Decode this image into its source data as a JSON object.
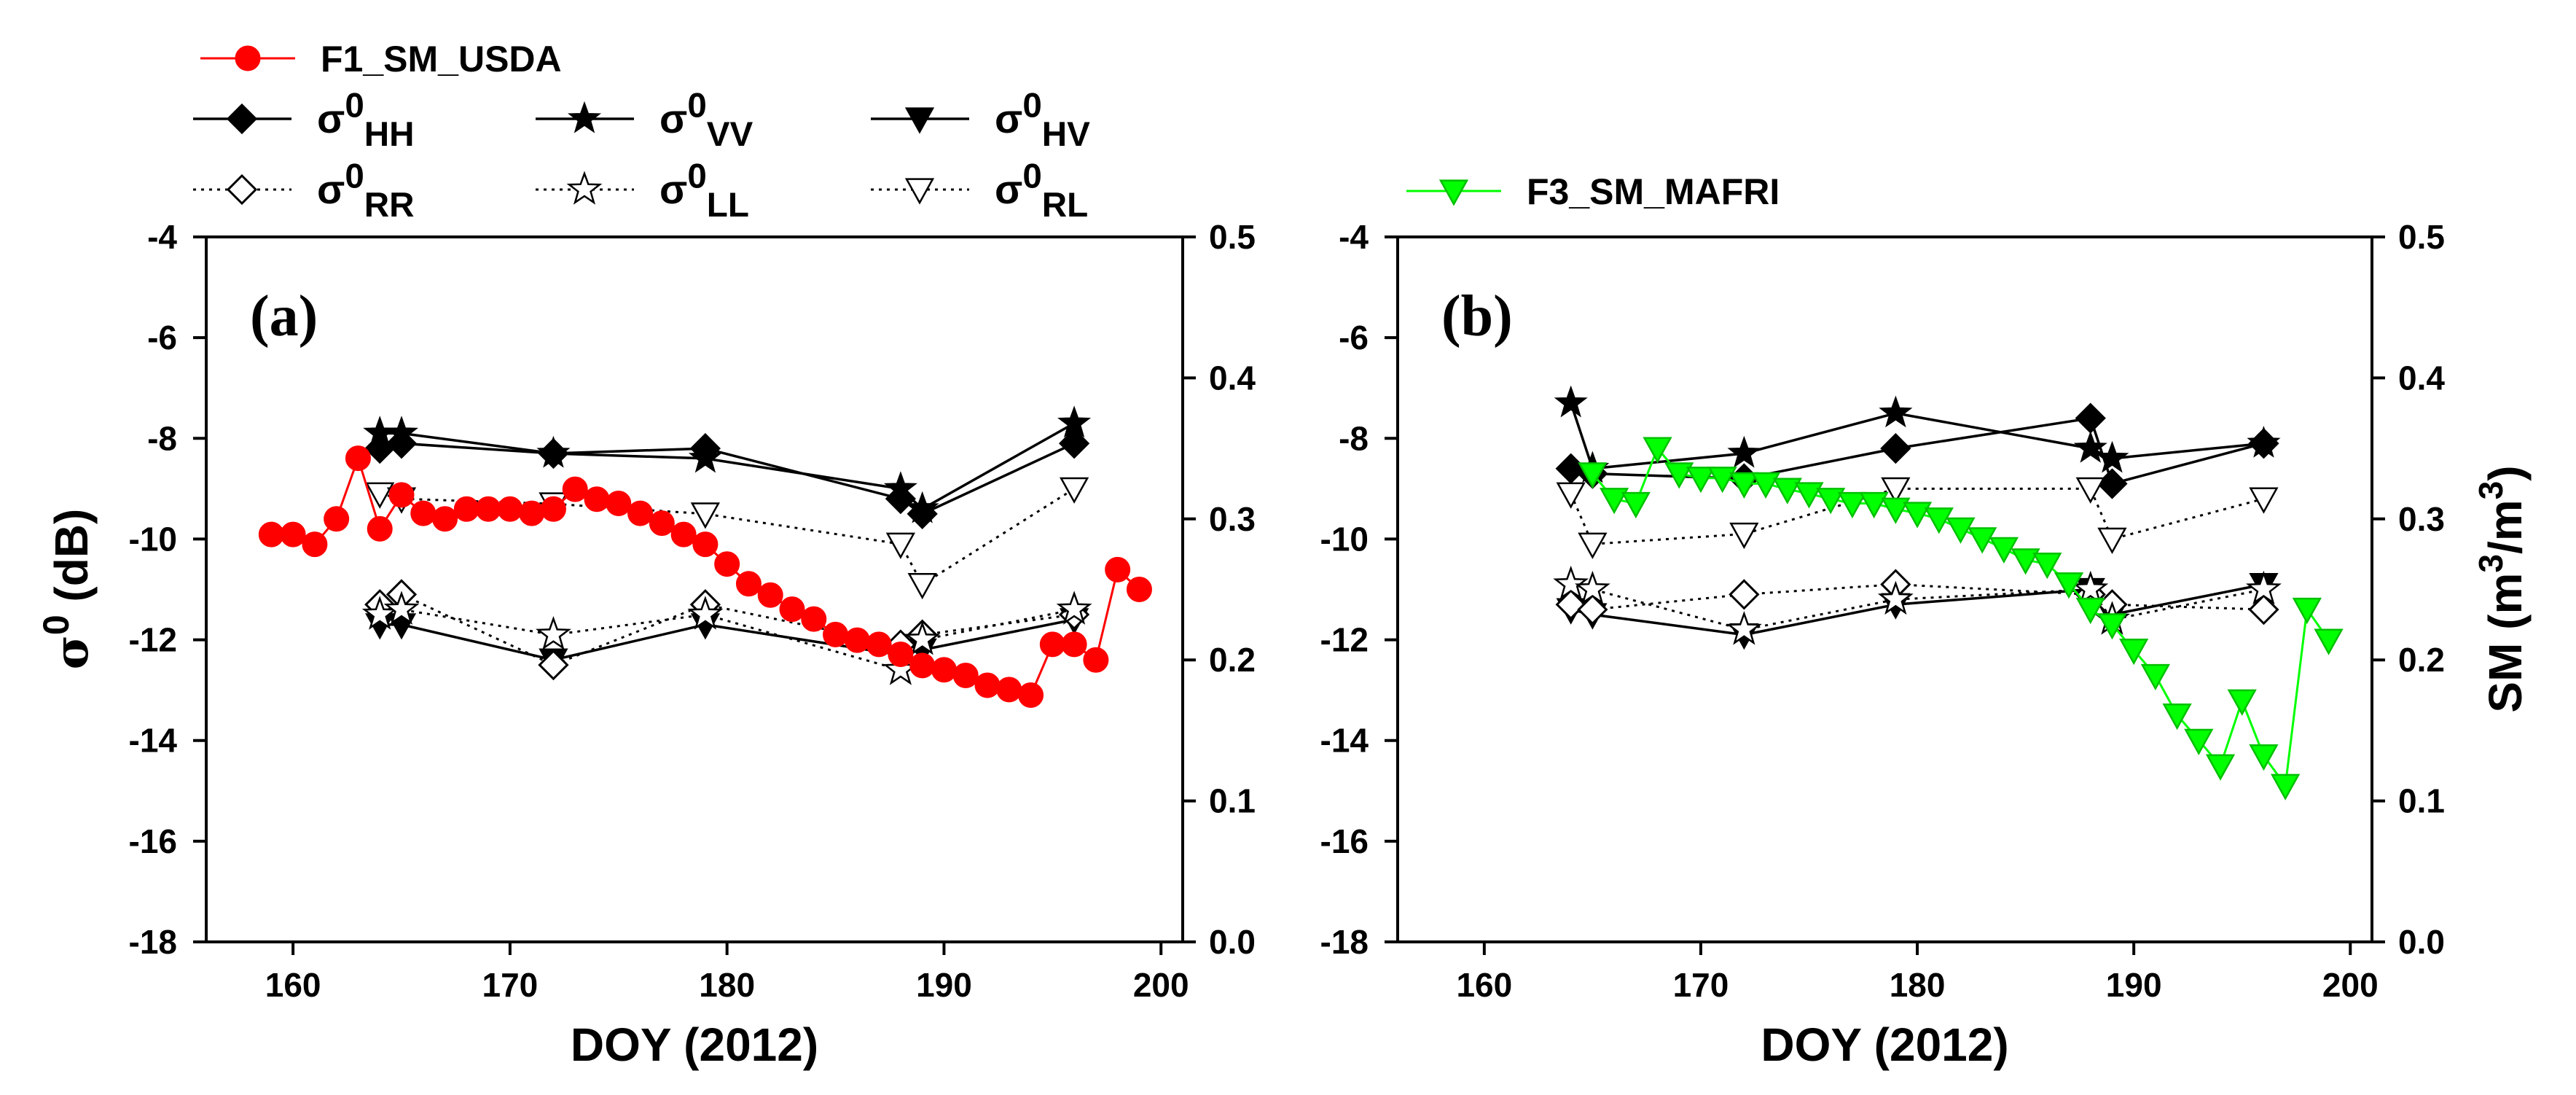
{
  "chart_data": [
    {
      "type": "line",
      "panel_label": "(a)",
      "xlabel": "DOY (2012)",
      "ylabel": "σ",
      "ylabel_sup": "0",
      "ylabel_unit": " (dB)",
      "xlim": [
        156,
        201
      ],
      "ylim": [
        -18,
        -4
      ],
      "y2lim": [
        0.0,
        0.5
      ],
      "xticks": [
        "160",
        "170",
        "180",
        "190",
        "200"
      ],
      "yticks": [
        "-4",
        "-6",
        "-8",
        "-10",
        "-12",
        "-14",
        "-16",
        "-18"
      ],
      "y2ticks": [
        "0.5",
        "0.4",
        "0.3",
        "0.2",
        "0.1",
        "0.0"
      ],
      "series": [
        {
          "name": "σ0HH",
          "axis": "left",
          "line": "solid",
          "marker": "diamond-filled",
          "x": [
            164,
            165,
            172,
            179,
            188,
            189,
            196
          ],
          "y": [
            -8.2,
            -8.1,
            -8.3,
            -8.2,
            -9.2,
            -9.5,
            -8.1
          ]
        },
        {
          "name": "σ0VV",
          "axis": "left",
          "line": "solid",
          "marker": "star-filled",
          "x": [
            164,
            165,
            172,
            179,
            188,
            189,
            196
          ],
          "y": [
            -7.9,
            -7.9,
            -8.3,
            -8.4,
            -9.0,
            -9.4,
            -7.7
          ]
        },
        {
          "name": "σ0HV",
          "axis": "left",
          "line": "solid",
          "marker": "tri-down-filled",
          "x": [
            164,
            165,
            172,
            179,
            188,
            189,
            196
          ],
          "y": [
            -11.7,
            -11.7,
            -12.4,
            -11.7,
            -12.3,
            -12.2,
            -11.6
          ]
        },
        {
          "name": "σ0RR",
          "axis": "left",
          "line": "dotted",
          "marker": "diamond-open",
          "x": [
            164,
            165,
            172,
            179,
            188,
            189,
            196
          ],
          "y": [
            -11.3,
            -11.1,
            -12.5,
            -11.3,
            -12.1,
            -11.9,
            -11.5
          ]
        },
        {
          "name": "σ0LL",
          "axis": "left",
          "line": "dotted",
          "marker": "star-open",
          "x": [
            164,
            165,
            172,
            179,
            188,
            189,
            196
          ],
          "y": [
            -11.5,
            -11.4,
            -11.9,
            -11.5,
            -12.6,
            -12.0,
            -11.4
          ]
        },
        {
          "name": "σ0RL",
          "axis": "left",
          "line": "dotted",
          "marker": "tri-down-open",
          "x": [
            164,
            165,
            172,
            179,
            188,
            189,
            196
          ],
          "y": [
            -9.1,
            -9.2,
            -9.3,
            -9.5,
            -10.1,
            -10.9,
            -9.0
          ]
        },
        {
          "name": "F1_SM_USDA",
          "axis": "right",
          "line": "solid",
          "color": "#ff0000",
          "marker": "circle-filled",
          "x": [
            159,
            160,
            161,
            162,
            163,
            164,
            165,
            166,
            167,
            168,
            169,
            170,
            171,
            172,
            173,
            174,
            175,
            176,
            177,
            178,
            179,
            180,
            181,
            182,
            183,
            184,
            185,
            186,
            187,
            188,
            189,
            190,
            191,
            192,
            193,
            194,
            195,
            196,
            197,
            198,
            199
          ],
          "y": [
            0.289,
            0.289,
            0.282,
            0.3,
            0.343,
            0.293,
            0.317,
            0.304,
            0.3,
            0.307,
            0.307,
            0.307,
            0.304,
            0.307,
            0.321,
            0.314,
            0.311,
            0.304,
            0.297,
            0.289,
            0.282,
            0.268,
            0.254,
            0.246,
            0.236,
            0.229,
            0.218,
            0.214,
            0.211,
            0.204,
            0.196,
            0.193,
            0.189,
            0.182,
            0.179,
            0.175,
            0.211,
            0.211,
            0.2,
            0.264,
            0.25
          ]
        }
      ]
    },
    {
      "type": "line",
      "panel_label": "(b)",
      "xlabel": "DOY (2012)",
      "ylabel": "SM (m",
      "ylabel_sup1": "3",
      "ylabel_mid": "/m",
      "ylabel_sup2": "3",
      "ylabel_end": ")",
      "xlim": [
        156,
        201
      ],
      "ylim": [
        -18,
        -4
      ],
      "y2lim": [
        0.0,
        0.5
      ],
      "xticks": [
        "160",
        "170",
        "180",
        "190",
        "200"
      ],
      "yticks": [
        "-4",
        "-6",
        "-8",
        "-10",
        "-12",
        "-14",
        "-16",
        "-18"
      ],
      "y2ticks": [
        "0.5",
        "0.4",
        "0.3",
        "0.2",
        "0.1",
        "0.0"
      ],
      "series": [
        {
          "name": "σ0HH",
          "axis": "left",
          "line": "solid",
          "marker": "diamond-filled",
          "x": [
            164,
            165,
            172,
            179,
            188,
            189,
            196
          ],
          "y": [
            -8.6,
            -8.7,
            -8.8,
            -8.2,
            -7.6,
            -8.9,
            -8.1
          ]
        },
        {
          "name": "σ0VV",
          "axis": "left",
          "line": "solid",
          "marker": "star-filled",
          "x": [
            164,
            165,
            172,
            179,
            188,
            189,
            196
          ],
          "y": [
            -7.3,
            -8.6,
            -8.3,
            -7.5,
            -8.2,
            -8.4,
            -8.1
          ]
        },
        {
          "name": "σ0HV",
          "axis": "left",
          "line": "solid",
          "marker": "tri-down-filled",
          "x": [
            164,
            165,
            172,
            179,
            188,
            189,
            196
          ],
          "y": [
            -11.4,
            -11.5,
            -11.9,
            -11.3,
            -11.0,
            -11.5,
            -10.9
          ]
        },
        {
          "name": "σ0RR",
          "axis": "left",
          "line": "dotted",
          "marker": "diamond-open",
          "x": [
            164,
            165,
            172,
            179,
            188,
            189,
            196
          ],
          "y": [
            -11.3,
            -11.4,
            -11.1,
            -10.9,
            -11.1,
            -11.3,
            -11.4
          ]
        },
        {
          "name": "σ0LL",
          "axis": "left",
          "line": "dotted",
          "marker": "star-open",
          "x": [
            164,
            165,
            172,
            179,
            188,
            189,
            196
          ],
          "y": [
            -10.9,
            -11.0,
            -11.8,
            -11.2,
            -11.0,
            -11.6,
            -11.0
          ]
        },
        {
          "name": "σ0RL",
          "axis": "left",
          "line": "dotted",
          "marker": "tri-down-open",
          "x": [
            164,
            165,
            172,
            179,
            188,
            189,
            196
          ],
          "y": [
            -9.1,
            -10.1,
            -9.9,
            -9.0,
            -9.0,
            -10.0,
            -9.2
          ]
        },
        {
          "name": "F3_SM_MAFRI",
          "axis": "right",
          "line": "solid",
          "color": "#00ff00",
          "marker": "tri-down-filled",
          "x": [
            165,
            166,
            167,
            168,
            169,
            170,
            171,
            172,
            173,
            174,
            175,
            176,
            177,
            178,
            179,
            180,
            181,
            182,
            183,
            184,
            185,
            186,
            187,
            188,
            189,
            190,
            191,
            192,
            193,
            194,
            195,
            196,
            197,
            198,
            199
          ],
          "y": [
            0.332,
            0.314,
            0.311,
            0.35,
            0.332,
            0.329,
            0.329,
            0.325,
            0.325,
            0.321,
            0.318,
            0.314,
            0.311,
            0.311,
            0.307,
            0.304,
            0.3,
            0.293,
            0.286,
            0.279,
            0.271,
            0.268,
            0.254,
            0.236,
            0.225,
            0.207,
            0.189,
            0.161,
            0.143,
            0.125,
            0.171,
            0.132,
            0.111,
            0.236,
            0.214
          ]
        }
      ]
    }
  ],
  "legend": {
    "row1": [
      {
        "base": "F1_SM_USDA",
        "sub": ""
      }
    ],
    "row2": [
      {
        "base": "σ",
        "sup": "0",
        "sub": "HH"
      },
      {
        "base": "σ",
        "sup": "0",
        "sub": "VV"
      },
      {
        "base": "σ",
        "sup": "0",
        "sub": "HV"
      }
    ],
    "row3": [
      {
        "base": "σ",
        "sup": "0",
        "sub": "RR"
      },
      {
        "base": "σ",
        "sup": "0",
        "sub": "LL"
      },
      {
        "base": "σ",
        "sup": "0",
        "sub": "RL"
      }
    ],
    "panel_b": [
      {
        "base": "F3_SM_MAFRI",
        "sub": ""
      }
    ]
  }
}
